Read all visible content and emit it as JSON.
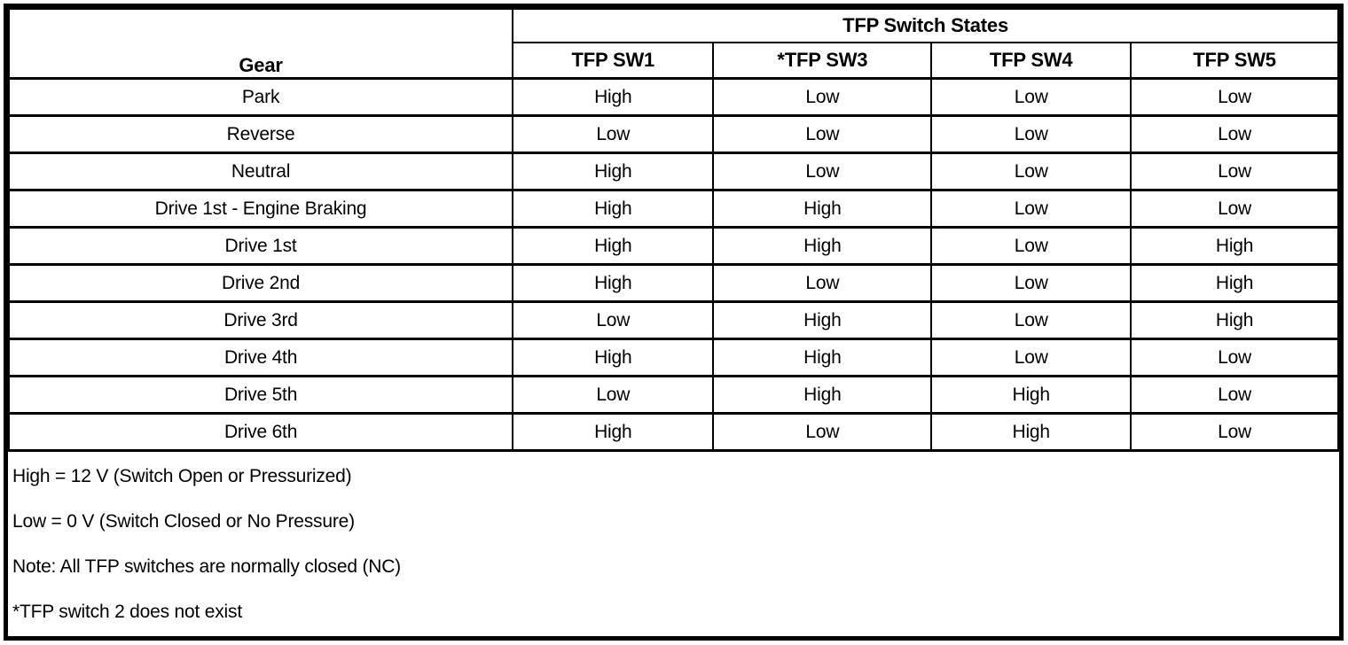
{
  "table": {
    "gear_header": "Gear",
    "group_header": "TFP Switch States",
    "columns": [
      "TFP SW1",
      "*TFP SW3",
      "TFP SW4",
      "TFP SW5"
    ],
    "rows": [
      {
        "gear": "Park",
        "values": [
          "High",
          "Low",
          "Low",
          "Low"
        ]
      },
      {
        "gear": "Reverse",
        "values": [
          "Low",
          "Low",
          "Low",
          "Low"
        ]
      },
      {
        "gear": "Neutral",
        "values": [
          "High",
          "Low",
          "Low",
          "Low"
        ]
      },
      {
        "gear": "Drive 1st - Engine Braking",
        "values": [
          "High",
          "High",
          "Low",
          "Low"
        ]
      },
      {
        "gear": "Drive 1st",
        "values": [
          "High",
          "High",
          "Low",
          "High"
        ]
      },
      {
        "gear": "Drive 2nd",
        "values": [
          "High",
          "Low",
          "Low",
          "High"
        ]
      },
      {
        "gear": "Drive 3rd",
        "values": [
          "Low",
          "High",
          "Low",
          "High"
        ]
      },
      {
        "gear": "Drive 4th",
        "values": [
          "High",
          "High",
          "Low",
          "Low"
        ]
      },
      {
        "gear": "Drive 5th",
        "values": [
          "Low",
          "High",
          "High",
          "Low"
        ]
      },
      {
        "gear": "Drive 6th",
        "values": [
          "High",
          "Low",
          "High",
          "Low"
        ]
      }
    ],
    "notes": [
      "High = 12 V (Switch Open or Pressurized)",
      "Low = 0 V (Switch Closed or No Pressure)",
      "Note: All TFP switches are normally closed (NC)",
      "*TFP switch 2 does not exist"
    ]
  },
  "chart_data": {
    "type": "table",
    "title": "TFP Switch States",
    "columns": [
      "Gear",
      "TFP SW1",
      "*TFP SW3",
      "TFP SW4",
      "TFP SW5"
    ],
    "rows": [
      [
        "Park",
        "High",
        "Low",
        "Low",
        "Low"
      ],
      [
        "Reverse",
        "Low",
        "Low",
        "Low",
        "Low"
      ],
      [
        "Neutral",
        "High",
        "Low",
        "Low",
        "Low"
      ],
      [
        "Drive 1st - Engine Braking",
        "High",
        "High",
        "Low",
        "Low"
      ],
      [
        "Drive 1st",
        "High",
        "High",
        "Low",
        "High"
      ],
      [
        "Drive 2nd",
        "High",
        "Low",
        "Low",
        "High"
      ],
      [
        "Drive 3rd",
        "Low",
        "High",
        "Low",
        "High"
      ],
      [
        "Drive 4th",
        "High",
        "High",
        "Low",
        "Low"
      ],
      [
        "Drive 5th",
        "Low",
        "High",
        "High",
        "Low"
      ],
      [
        "Drive 6th",
        "High",
        "Low",
        "High",
        "Low"
      ]
    ],
    "annotations": [
      "High = 12 V (Switch Open or Pressurized)",
      "Low = 0 V (Switch Closed or No Pressure)",
      "Note: All TFP switches are normally closed (NC)",
      "*TFP switch 2 does not exist"
    ]
  },
  "colors": {
    "border": "#000000",
    "background": "#ffffff",
    "text": "#000000"
  }
}
